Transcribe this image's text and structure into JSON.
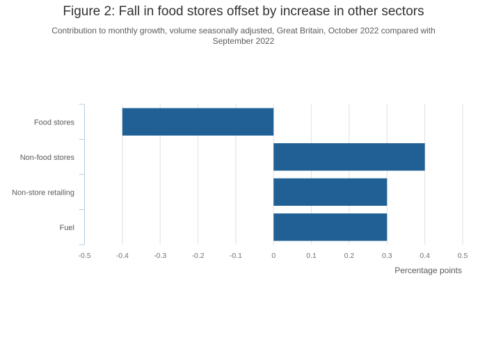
{
  "chart_data": {
    "type": "bar",
    "orientation": "horizontal",
    "title": "Figure 2: Fall in food stores offset by increase in other sectors",
    "subtitle": "Contribution to monthly growth, volume seasonally adjusted, Great Britain, October 2022 compared with September 2022",
    "categories": [
      "Food stores",
      "Non-food stores",
      "Non-store retailing",
      "Fuel"
    ],
    "values": [
      -0.4,
      0.4,
      0.3,
      0.3
    ],
    "xlabel": "Percentage points",
    "ylabel": "",
    "xlim": [
      -0.5,
      0.5
    ],
    "xticks": [
      -0.5,
      -0.4,
      -0.3,
      -0.2,
      -0.1,
      0,
      0.1,
      0.2,
      0.3,
      0.4,
      0.5
    ],
    "xtick_labels": [
      "-0.5",
      "-0.4",
      "-0.3",
      "-0.2",
      "-0.1",
      "0",
      "0.1",
      "0.2",
      "0.3",
      "0.4",
      "0.5"
    ],
    "grid": true,
    "legend": "none",
    "colors": {
      "bar": "#206095",
      "grid": "#e0e0e0",
      "axis": "#b3cde0"
    }
  }
}
